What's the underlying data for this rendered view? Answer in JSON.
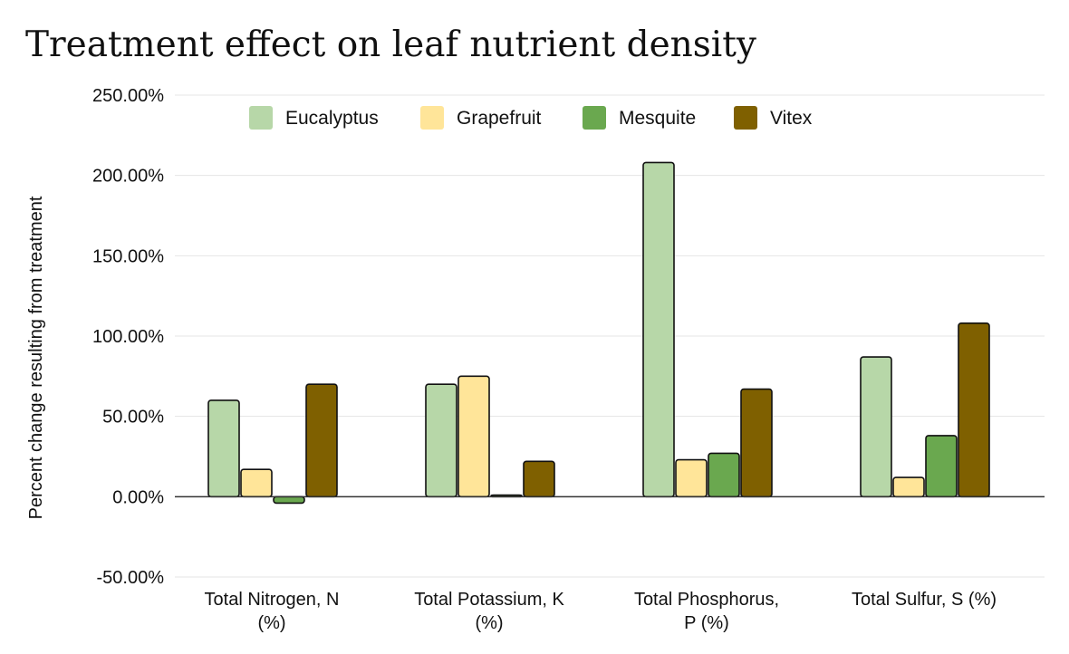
{
  "chart_data": {
    "type": "bar",
    "title": "Treatment effect on leaf nutrient density",
    "xlabel": "",
    "ylabel": "Percent change resulting from treatment",
    "ylim": [
      -50,
      250
    ],
    "yticks": [
      -50,
      0,
      50,
      100,
      150,
      200,
      250
    ],
    "ytick_labels": [
      "-50.00%",
      "0.00%",
      "50.00%",
      "100.00%",
      "150.00%",
      "200.00%",
      "250.00%"
    ],
    "grid": true,
    "legend_position": "top",
    "categories": [
      [
        "Total Nitrogen, N",
        "(%)"
      ],
      [
        "Total Potassium, K",
        "(%)"
      ],
      [
        "Total Phosphorus,",
        "P (%)"
      ],
      [
        "Total Sulfur, S (%)"
      ]
    ],
    "series": [
      {
        "name": "Eucalyptus",
        "color": "#b7d7a8",
        "values": [
          60,
          70,
          208,
          87
        ]
      },
      {
        "name": "Grapefruit",
        "color": "#ffe599",
        "values": [
          17,
          75,
          23,
          12
        ]
      },
      {
        "name": "Mesquite",
        "color": "#6aa84f",
        "values": [
          -4,
          1,
          27,
          38
        ]
      },
      {
        "name": "Vitex",
        "color": "#7f6000",
        "values": [
          70,
          22,
          67,
          108
        ]
      }
    ]
  }
}
